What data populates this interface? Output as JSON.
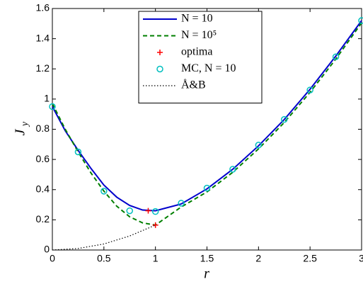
{
  "chart_data": {
    "type": "line",
    "xlabel": "r",
    "ylabel": "J",
    "ylabel_subscript": "y",
    "xlim": [
      0,
      3
    ],
    "ylim": [
      0,
      1.6
    ],
    "xticks": [
      0,
      0.5,
      1,
      1.5,
      2,
      2.5,
      3
    ],
    "yticks": [
      0,
      0.2,
      0.4,
      0.6,
      0.8,
      1,
      1.2,
      1.4,
      1.6
    ],
    "grid": false,
    "legend": "upper center",
    "series": [
      {
        "name": "N = 10",
        "color": "#0000cc",
        "style": "solid",
        "x": [
          0,
          0.125,
          0.25,
          0.375,
          0.5,
          0.625,
          0.75,
          0.875,
          1,
          1.25,
          1.5,
          1.75,
          2,
          2.25,
          2.5,
          2.75,
          3
        ],
        "values": [
          0.95,
          0.79,
          0.66,
          0.54,
          0.43,
          0.35,
          0.295,
          0.265,
          0.26,
          0.305,
          0.405,
          0.535,
          0.69,
          0.865,
          1.065,
          1.285,
          1.52
        ]
      },
      {
        "name": "N = 10⁵",
        "color": "#007f00",
        "style": "dashed",
        "x": [
          0,
          0.125,
          0.25,
          0.375,
          0.5,
          0.625,
          0.75,
          0.875,
          1,
          1.25,
          1.5,
          1.75,
          2,
          2.25,
          2.5,
          2.75,
          3
        ],
        "values": [
          0.97,
          0.8,
          0.65,
          0.51,
          0.39,
          0.29,
          0.22,
          0.18,
          0.165,
          0.285,
          0.385,
          0.515,
          0.67,
          0.845,
          1.045,
          1.265,
          1.505
        ]
      },
      {
        "name": "optima",
        "color": "#ff0000",
        "style": "plus",
        "x": [
          0.93,
          1.0
        ],
        "values": [
          0.26,
          0.165
        ]
      },
      {
        "name": "MC, N = 10",
        "color": "#00bfbf",
        "style": "circle",
        "x": [
          0,
          0.25,
          0.5,
          0.75,
          1,
          1.25,
          1.5,
          1.75,
          2,
          2.25,
          2.5,
          2.75,
          3
        ],
        "values": [
          0.95,
          0.65,
          0.39,
          0.26,
          0.255,
          0.31,
          0.41,
          0.535,
          0.695,
          0.865,
          1.06,
          1.28,
          1.52
        ]
      },
      {
        "name": "Å&B",
        "color": "#000000",
        "style": "dotted",
        "x": [
          0,
          0.25,
          0.5,
          0.75,
          1
        ],
        "values": [
          0,
          0.01,
          0.04,
          0.093,
          0.165
        ]
      }
    ]
  }
}
